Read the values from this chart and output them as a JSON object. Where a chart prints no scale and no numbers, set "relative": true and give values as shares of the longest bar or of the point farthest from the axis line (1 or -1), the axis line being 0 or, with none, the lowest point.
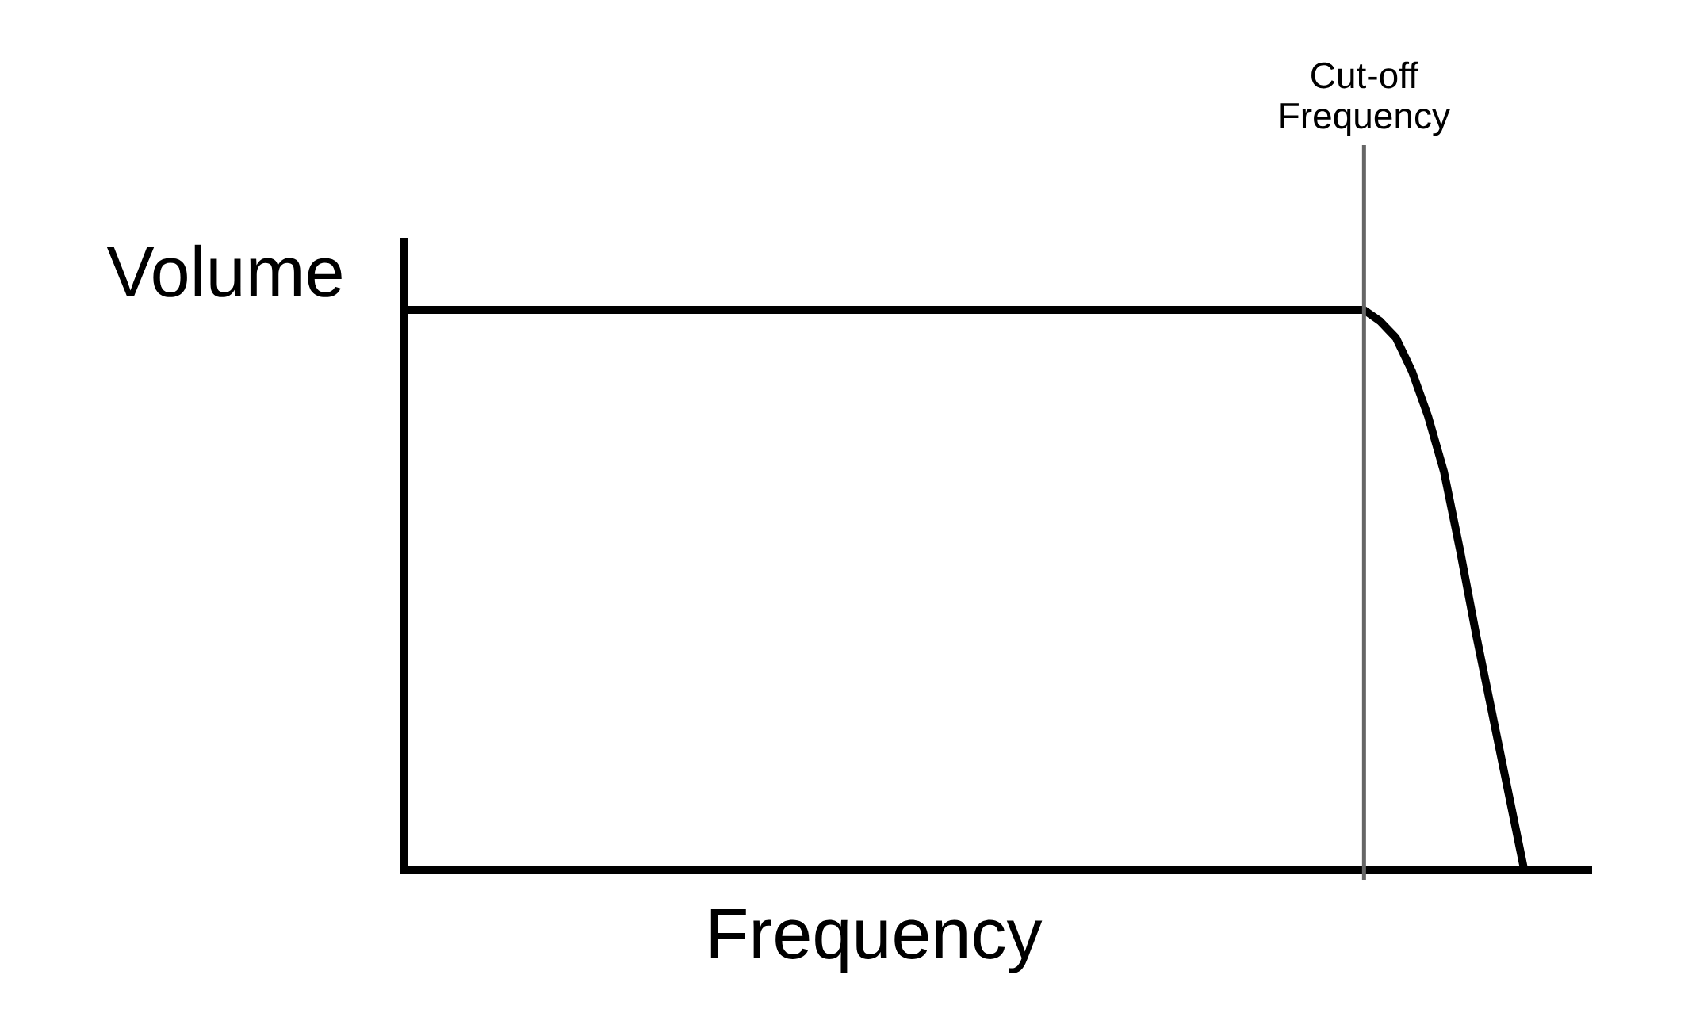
{
  "chart_data": {
    "type": "line",
    "relative": true,
    "xlabel": "Frequency",
    "ylabel": "Volume",
    "categories": [
      null,
      null,
      null,
      null,
      null,
      null,
      null,
      null,
      null,
      null,
      null,
      null,
      null,
      null,
      null,
      null,
      null,
      null,
      null,
      null,
      null,
      null,
      null,
      null,
      null,
      null,
      null,
      null,
      null,
      null,
      null,
      null,
      null,
      null,
      null,
      null,
      null,
      null,
      null,
      null,
      null,
      null,
      null,
      null,
      null,
      null,
      null,
      null,
      null,
      null,
      null,
      null,
      null,
      null,
      null,
      null,
      null,
      null,
      null,
      null,
      null,
      null,
      null,
      null,
      null,
      null,
      null,
      null,
      null,
      null,
      null,
      null,
      null,
      null,
      null
    ],
    "series": [
      {
        "color": "#000000",
        "values": [
          1,
          1,
          1,
          1,
          1,
          1,
          1,
          1,
          1,
          1,
          1,
          1,
          1,
          1,
          1,
          1,
          1,
          1,
          1,
          1,
          1,
          1,
          1,
          1,
          1,
          1,
          1,
          1,
          1,
          1,
          1,
          1,
          1,
          1,
          1,
          1,
          1,
          1,
          1,
          1,
          1,
          1,
          1,
          1,
          1,
          1,
          1,
          1,
          1,
          1,
          1,
          1,
          1,
          1,
          1,
          1,
          1,
          1,
          1,
          1,
          1,
          0.98,
          0.95,
          0.89,
          0.81,
          0.71,
          0.57,
          0.42,
          0.28,
          0.14,
          0,
          null,
          null,
          null,
          null
        ]
      }
    ],
    "line_style": "solid",
    "annotations": [
      "Cut-off Frequency"
    ]
  }
}
